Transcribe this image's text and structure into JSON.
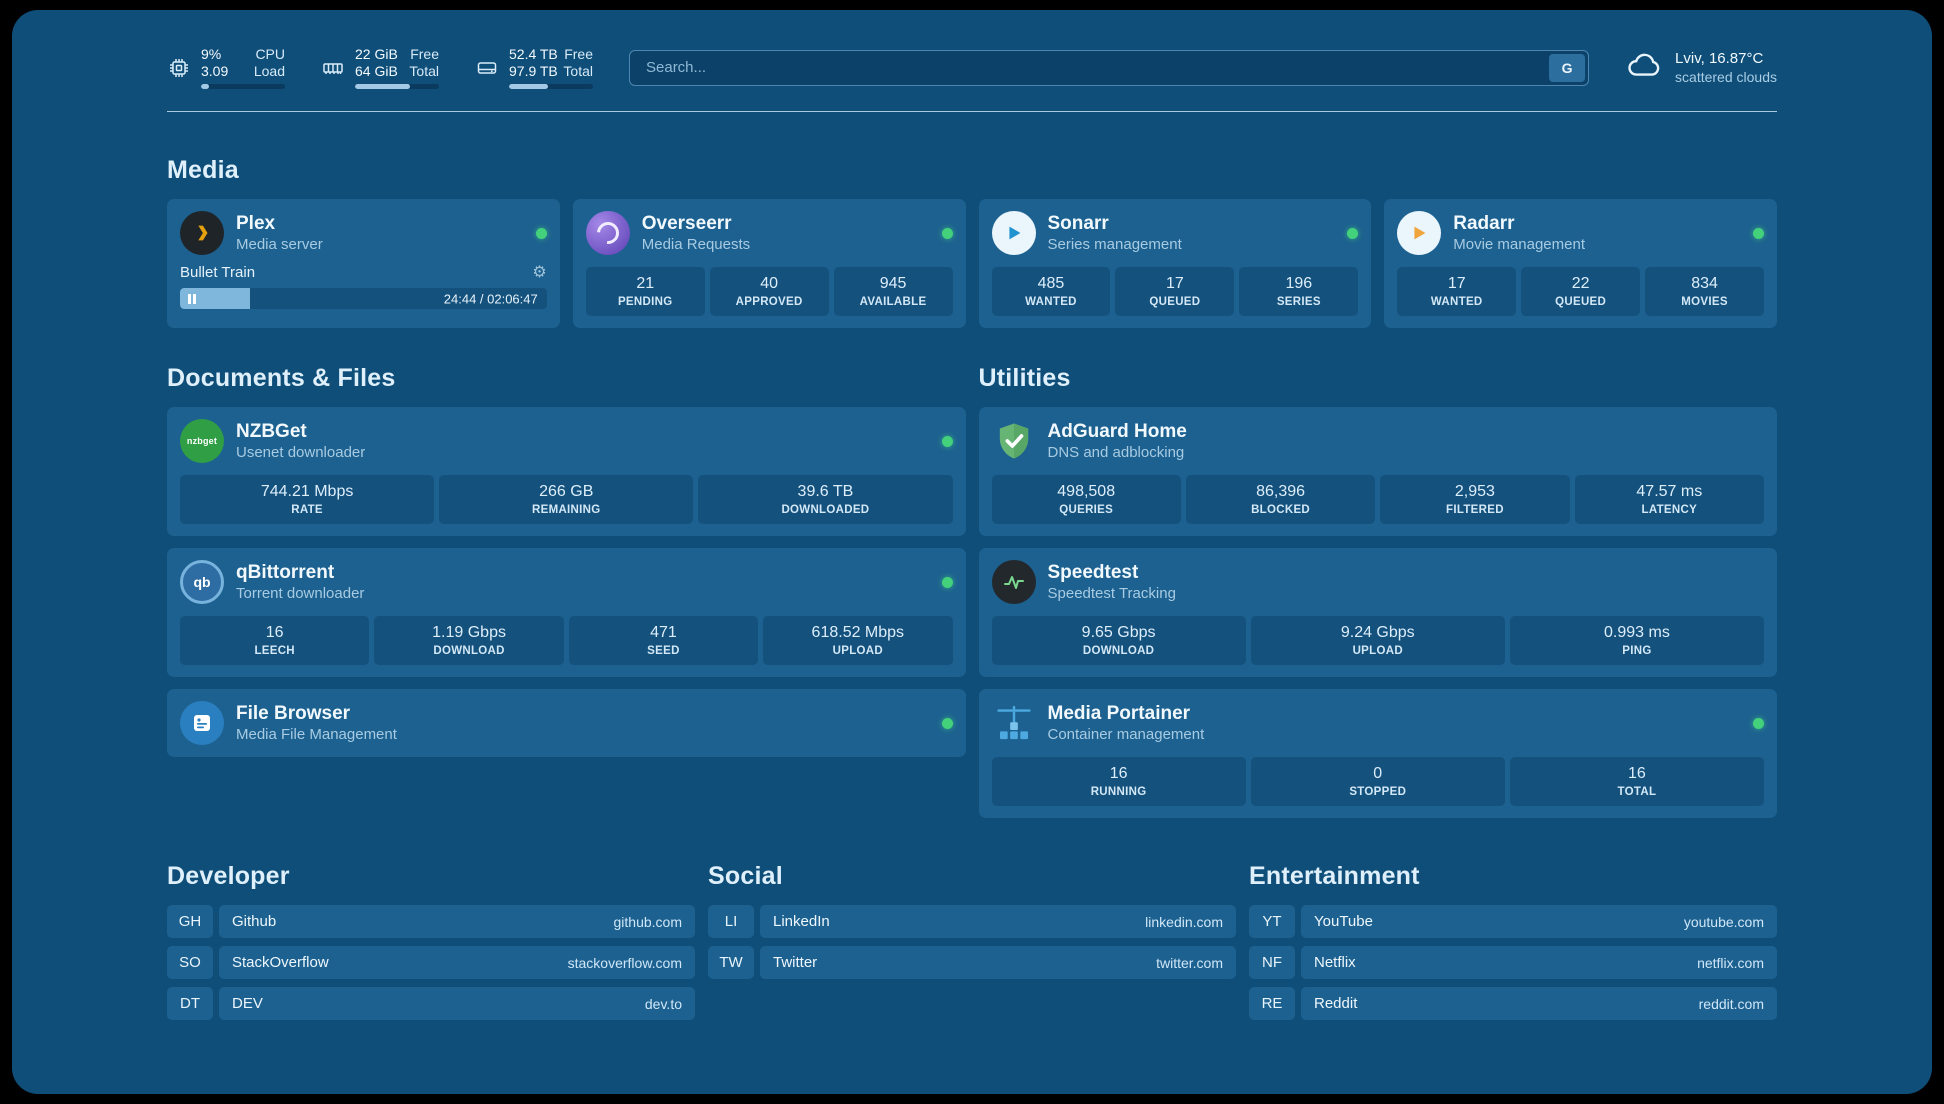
{
  "colors": {
    "background": "#0e4e79",
    "card": "#1d6190",
    "tile": "#14517d",
    "status_online": "#43d17c",
    "progress_fill": "#a3c9e4",
    "plex_orange": "#e5a00d",
    "radarr_orange": "#f0a43c",
    "sonarr_blue": "#2193cf",
    "adguard_green": "#66b574",
    "nzbget_green": "#2f9e44",
    "speedtest_green": "#7bd88f",
    "portainer_blue": "#4da9e0"
  },
  "topbar": {
    "cpu": {
      "icon": "cpu-icon",
      "value_top": "9%",
      "value_bottom": "3.09",
      "label_top": "CPU",
      "label_bottom": "Load",
      "progress_percent": 9
    },
    "memory": {
      "icon": "memory-icon",
      "value_top": "22 GiB",
      "value_bottom": "64 GiB",
      "label_top": "Free",
      "label_bottom": "Total",
      "progress_percent": 66
    },
    "disk": {
      "icon": "disk-icon",
      "value_top": "52.4 TB",
      "value_bottom": "97.9 TB",
      "label_top": "Free",
      "label_bottom": "Total",
      "progress_percent": 46
    },
    "search": {
      "placeholder": "Search...",
      "provider_label": "G"
    },
    "weather": {
      "icon": "cloud-icon",
      "location": "Lviv, 16.87°C",
      "condition": "scattered clouds"
    }
  },
  "media": {
    "title": "Media",
    "plex": {
      "name": "Plex",
      "subtitle": "Media server",
      "status": "online",
      "now_playing": {
        "title": "Bullet Train",
        "time": "24:44 / 02:06:47",
        "progress_percent": 19
      }
    },
    "overseerr": {
      "name": "Overseerr",
      "subtitle": "Media Requests",
      "status": "online",
      "stats": [
        {
          "value": "21",
          "label": "PENDING"
        },
        {
          "value": "40",
          "label": "APPROVED"
        },
        {
          "value": "945",
          "label": "AVAILABLE"
        }
      ]
    },
    "sonarr": {
      "name": "Sonarr",
      "subtitle": "Series management",
      "status": "online",
      "stats": [
        {
          "value": "485",
          "label": "WANTED"
        },
        {
          "value": "17",
          "label": "QUEUED"
        },
        {
          "value": "196",
          "label": "SERIES"
        }
      ]
    },
    "radarr": {
      "name": "Radarr",
      "subtitle": "Movie management",
      "status": "online",
      "stats": [
        {
          "value": "17",
          "label": "WANTED"
        },
        {
          "value": "22",
          "label": "QUEUED"
        },
        {
          "value": "834",
          "label": "MOVIES"
        }
      ]
    }
  },
  "documents": {
    "title": "Documents & Files",
    "nzbget": {
      "name": "NZBGet",
      "subtitle": "Usenet downloader",
      "icon_label": "nzbget",
      "status": "online",
      "stats": [
        {
          "value": "744.21 Mbps",
          "label": "RATE"
        },
        {
          "value": "266 GB",
          "label": "REMAINING"
        },
        {
          "value": "39.6 TB",
          "label": "DOWNLOADED"
        }
      ]
    },
    "qbittorrent": {
      "name": "qBittorrent",
      "subtitle": "Torrent downloader",
      "icon_label": "qb",
      "status": "online",
      "stats": [
        {
          "value": "16",
          "label": "LEECH"
        },
        {
          "value": "1.19 Gbps",
          "label": "DOWNLOAD"
        },
        {
          "value": "471",
          "label": "SEED"
        },
        {
          "value": "618.52 Mbps",
          "label": "UPLOAD"
        }
      ]
    },
    "filebrowser": {
      "name": "File Browser",
      "subtitle": "Media File Management",
      "status": "online"
    }
  },
  "utilities": {
    "title": "Utilities",
    "adguard": {
      "name": "AdGuard Home",
      "subtitle": "DNS and adblocking",
      "stats": [
        {
          "value": "498,508",
          "label": "QUERIES"
        },
        {
          "value": "86,396",
          "label": "BLOCKED"
        },
        {
          "value": "2,953",
          "label": "FILTERED"
        },
        {
          "value": "47.57 ms",
          "label": "LATENCY"
        }
      ]
    },
    "speedtest": {
      "name": "Speedtest",
      "subtitle": "Speedtest Tracking",
      "stats": [
        {
          "value": "9.65 Gbps",
          "label": "DOWNLOAD"
        },
        {
          "value": "9.24 Gbps",
          "label": "UPLOAD"
        },
        {
          "value": "0.993 ms",
          "label": "PING"
        }
      ]
    },
    "portainer": {
      "name": "Media Portainer",
      "subtitle": "Container management",
      "status": "online",
      "stats": [
        {
          "value": "16",
          "label": "RUNNING"
        },
        {
          "value": "0",
          "label": "STOPPED"
        },
        {
          "value": "16",
          "label": "TOTAL"
        }
      ]
    }
  },
  "bookmarks": {
    "developer": {
      "title": "Developer",
      "items": [
        {
          "abbr": "GH",
          "name": "Github",
          "url": "github.com"
        },
        {
          "abbr": "SO",
          "name": "StackOverflow",
          "url": "stackoverflow.com"
        },
        {
          "abbr": "DT",
          "name": "DEV",
          "url": "dev.to"
        }
      ]
    },
    "social": {
      "title": "Social",
      "items": [
        {
          "abbr": "LI",
          "name": "LinkedIn",
          "url": "linkedin.com"
        },
        {
          "abbr": "TW",
          "name": "Twitter",
          "url": "twitter.com"
        }
      ]
    },
    "entertainment": {
      "title": "Entertainment",
      "items": [
        {
          "abbr": "YT",
          "name": "YouTube",
          "url": "youtube.com"
        },
        {
          "abbr": "NF",
          "name": "Netflix",
          "url": "netflix.com"
        },
        {
          "abbr": "RE",
          "name": "Reddit",
          "url": "reddit.com"
        }
      ]
    }
  }
}
